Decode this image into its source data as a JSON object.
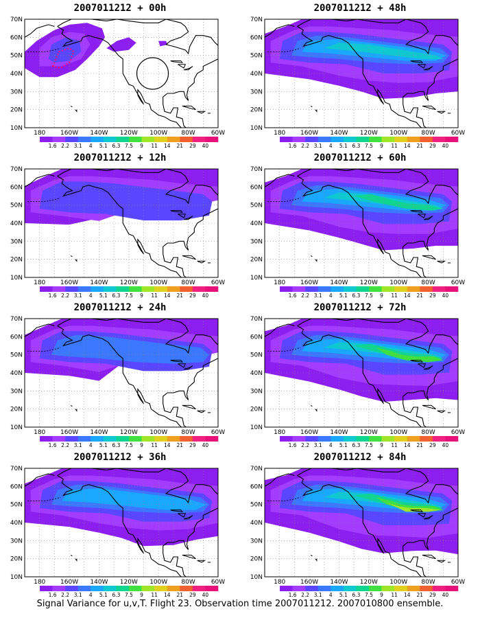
{
  "caption": "Signal Variance for u,v,T. Flight 23. Observation time 2007011212. 2007010800 ensemble.",
  "lat_labels": [
    "70N",
    "60N",
    "50N",
    "40N",
    "30N",
    "20N",
    "10N"
  ],
  "lon_labels": [
    "180",
    "160W",
    "140W",
    "120W",
    "100W",
    "80W",
    "60W"
  ],
  "colorbar": {
    "labels": [
      "1.6",
      "2.2",
      "3.1",
      "4",
      "5.1",
      "6.3",
      "7.5",
      "9",
      "11",
      "14",
      "21",
      "29",
      "40"
    ],
    "colors": [
      "#8c1ef0",
      "#a43cff",
      "#5a46ff",
      "#3b78ff",
      "#1aa8ff",
      "#10c8d0",
      "#10d490",
      "#40e040",
      "#a0e628",
      "#e0d020",
      "#f0a020",
      "#f06030",
      "#f02080",
      "#e8107a"
    ]
  },
  "panels": [
    {
      "id": "p00",
      "title": "2007011212 + 00h",
      "intensity": 0,
      "observation_marker": true
    },
    {
      "id": "p48",
      "title": "2007011212 + 48h",
      "intensity": 4
    },
    {
      "id": "p12",
      "title": "2007011212 + 12h",
      "intensity": 1
    },
    {
      "id": "p60",
      "title": "2007011212 + 60h",
      "intensity": 5
    },
    {
      "id": "p24",
      "title": "2007011212 + 24h",
      "intensity": 2
    },
    {
      "id": "p72",
      "title": "2007011212 + 72h",
      "intensity": 6
    },
    {
      "id": "p36",
      "title": "2007011212 + 36h",
      "intensity": 3
    },
    {
      "id": "p84",
      "title": "2007011212 + 84h",
      "intensity": 7
    }
  ]
}
